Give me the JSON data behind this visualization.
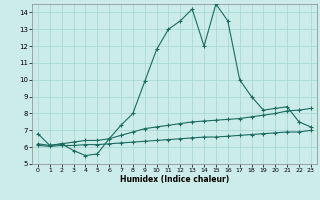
{
  "xlabel": "Humidex (Indice chaleur)",
  "bg_color": "#ccecea",
  "grid_color": "#aad8d5",
  "line_color": "#1a6b5e",
  "xlim": [
    -0.5,
    23.5
  ],
  "ylim": [
    5,
    14.5
  ],
  "yticks": [
    5,
    6,
    7,
    8,
    9,
    10,
    11,
    12,
    13,
    14
  ],
  "xticks": [
    0,
    1,
    2,
    3,
    4,
    5,
    6,
    7,
    8,
    9,
    10,
    11,
    12,
    13,
    14,
    15,
    16,
    17,
    18,
    19,
    20,
    21,
    22,
    23
  ],
  "line1_x": [
    0,
    1,
    2,
    3,
    4,
    5,
    6,
    7,
    8,
    9,
    10,
    11,
    12,
    13,
    14,
    15,
    16,
    17,
    18,
    19,
    20,
    21,
    22,
    23
  ],
  "line1_y": [
    6.8,
    6.1,
    6.2,
    5.8,
    5.5,
    5.6,
    6.5,
    7.3,
    8.0,
    9.9,
    11.8,
    13.0,
    13.5,
    14.2,
    12.0,
    14.5,
    13.5,
    10.0,
    9.0,
    8.2,
    8.3,
    8.4,
    7.5,
    7.2
  ],
  "line2_x": [
    0,
    1,
    2,
    3,
    4,
    5,
    6,
    7,
    8,
    9,
    10,
    11,
    12,
    13,
    14,
    15,
    16,
    17,
    18,
    19,
    20,
    21,
    22,
    23
  ],
  "line2_y": [
    6.2,
    6.1,
    6.2,
    6.3,
    6.4,
    6.4,
    6.5,
    6.7,
    6.9,
    7.1,
    7.2,
    7.3,
    7.4,
    7.5,
    7.55,
    7.6,
    7.65,
    7.7,
    7.8,
    7.9,
    8.0,
    8.15,
    8.2,
    8.3
  ],
  "line3_x": [
    0,
    1,
    2,
    3,
    4,
    5,
    6,
    7,
    8,
    9,
    10,
    11,
    12,
    13,
    14,
    15,
    16,
    17,
    18,
    19,
    20,
    21,
    22,
    23
  ],
  "line3_y": [
    6.1,
    6.05,
    6.1,
    6.1,
    6.15,
    6.15,
    6.2,
    6.25,
    6.3,
    6.35,
    6.4,
    6.45,
    6.5,
    6.55,
    6.6,
    6.6,
    6.65,
    6.7,
    6.75,
    6.8,
    6.85,
    6.9,
    6.9,
    7.0
  ]
}
